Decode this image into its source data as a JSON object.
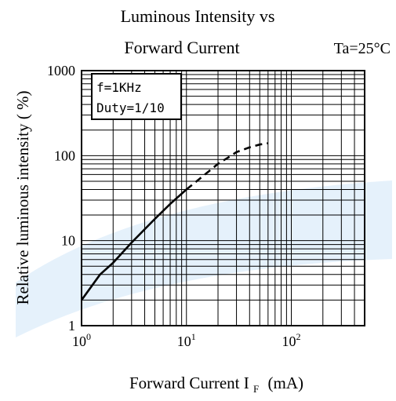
{
  "colors": {
    "background": "#ffffff",
    "ink": "#000000",
    "watermark": "#cfe6f7"
  },
  "chart_data": {
    "type": "line",
    "title_line1": "Luminous Intensity vs",
    "title_line2": "Forward Current",
    "condition_label": "Ta=25°C",
    "xlabel": "Forward Current",
    "xlabel_symbol": "I",
    "xlabel_subscript": "F",
    "xlabel_unit": "(mA)",
    "ylabel": "Relative luminous intensity ( %)",
    "x_scale": "log",
    "y_scale": "log",
    "xlim": [
      1,
      500
    ],
    "ylim": [
      1,
      1000
    ],
    "x_ticks": [
      {
        "value": 1,
        "base": "10",
        "exp": "0"
      },
      {
        "value": 10,
        "base": "10",
        "exp": "1"
      },
      {
        "value": 100,
        "base": "10",
        "exp": "2"
      }
    ],
    "y_ticks": [
      {
        "value": 1,
        "label": "1"
      },
      {
        "value": 10,
        "label": "10"
      },
      {
        "value": 100,
        "label": "100"
      },
      {
        "value": 1000,
        "label": "1000"
      }
    ],
    "grid": true,
    "legend_box": {
      "position": "top-left",
      "lines": [
        "f=1KHz",
        "Duty=1/10"
      ]
    },
    "series": [
      {
        "x": [
          1,
          1.5,
          2,
          3,
          5,
          7,
          10,
          15,
          20,
          25,
          30,
          40,
          50,
          60
        ],
        "y": [
          2,
          4,
          5.5,
          9.5,
          18,
          27,
          40,
          60,
          80,
          95,
          110,
          125,
          135,
          140
        ],
        "solid_until_x": 10
      }
    ]
  }
}
